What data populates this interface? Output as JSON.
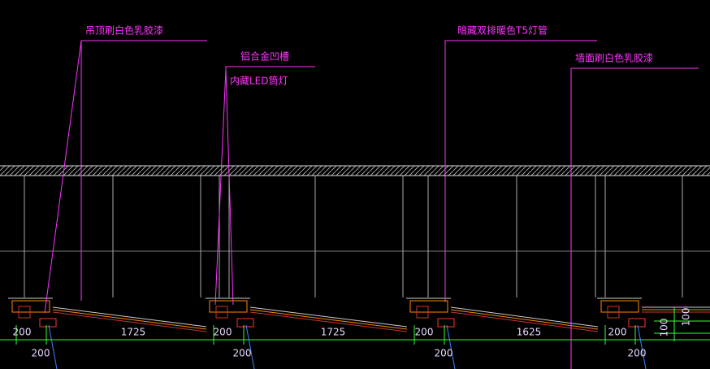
{
  "annotations": [
    {
      "label": "吊顶刷白色乳胶漆"
    },
    {
      "label": "铝合金凹槽"
    },
    {
      "label": "内藏LED筒灯"
    },
    {
      "label": "暗藏双排暖色T5灯管"
    },
    {
      "label": "墙面刷白色乳胶漆"
    }
  ],
  "dimensions": [
    "200",
    "1725",
    "200",
    "1725",
    "200",
    "1625",
    "200",
    "100",
    "100"
  ],
  "lower_dimensions": [
    "200",
    "200",
    "200",
    "200"
  ]
}
